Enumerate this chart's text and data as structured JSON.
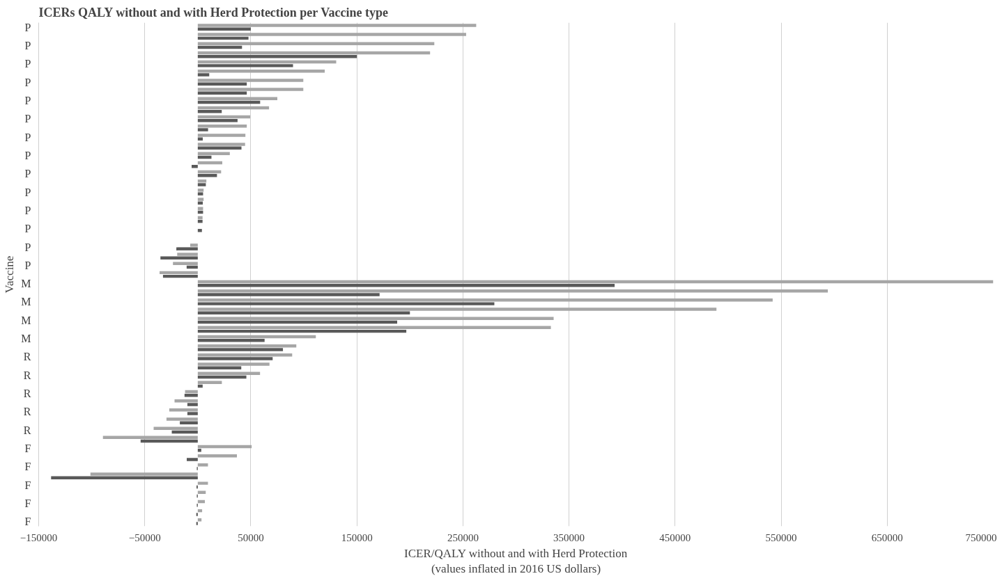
{
  "chart_data": {
    "type": "bar",
    "orientation": "horizontal",
    "title": "ICERs QALY without and with Herd Protection per Vaccine type",
    "xlabel": "ICER/QALY without and with Herd Protection\n(values inflated in 2016 US dollars)",
    "ylabel": "Vaccine",
    "categories": [
      "P",
      null,
      "P",
      null,
      "P",
      null,
      "P",
      null,
      "P",
      null,
      "P",
      null,
      "P",
      null,
      "P",
      null,
      "P",
      null,
      "P",
      null,
      "P",
      null,
      "P",
      null,
      "P",
      null,
      "P",
      null,
      "M",
      null,
      "M",
      null,
      "M",
      null,
      "M",
      null,
      "R",
      null,
      "R",
      null,
      "R",
      null,
      "R",
      null,
      "R",
      null,
      "F",
      null,
      "F",
      null,
      "F",
      null,
      "F",
      null,
      "F"
    ],
    "series": [
      {
        "color": "#a6a6a6",
        "values": [
          262500,
          253000,
          223000,
          219000,
          130500,
          119700,
          99500,
          99500,
          75000,
          67200,
          49400,
          46200,
          44900,
          44600,
          30200,
          23100,
          22000,
          8100,
          5500,
          5500,
          5000,
          4500,
          null,
          null,
          -7100,
          -19400,
          -23400,
          -36000,
          750000,
          594000,
          542000,
          489000,
          335500,
          332900,
          111300,
          92900,
          89000,
          67600,
          58700,
          22700,
          -12000,
          -21900,
          -26900,
          -29500,
          -41600,
          -89400,
          50800,
          36900,
          9600,
          -101200,
          9600,
          7500,
          6700,
          4100,
          3500
        ]
      },
      {
        "color": "#595959",
        "values": [
          50000,
          47800,
          41700,
          150000,
          89800,
          10800,
          46200,
          46200,
          58800,
          22600,
          37500,
          9700,
          4700,
          41200,
          12900,
          -5800,
          18100,
          7600,
          5000,
          4700,
          5000,
          4500,
          3900,
          0,
          -20200,
          -35200,
          -10500,
          -32800,
          393000,
          171400,
          279600,
          200000,
          188000,
          196600,
          63000,
          80300,
          70600,
          41000,
          45800,
          4600,
          -12500,
          -9800,
          -9800,
          -16900,
          -24500,
          -53900,
          3300,
          -10400,
          -900,
          -138300,
          -1200,
          -900,
          -900,
          -1400,
          -1400
        ]
      }
    ],
    "xlim": [
      -150000,
      750000
    ],
    "xticks": [
      -150000,
      -50000,
      50000,
      150000,
      250000,
      350000,
      450000,
      550000,
      650000,
      750000
    ],
    "grid": "x"
  }
}
